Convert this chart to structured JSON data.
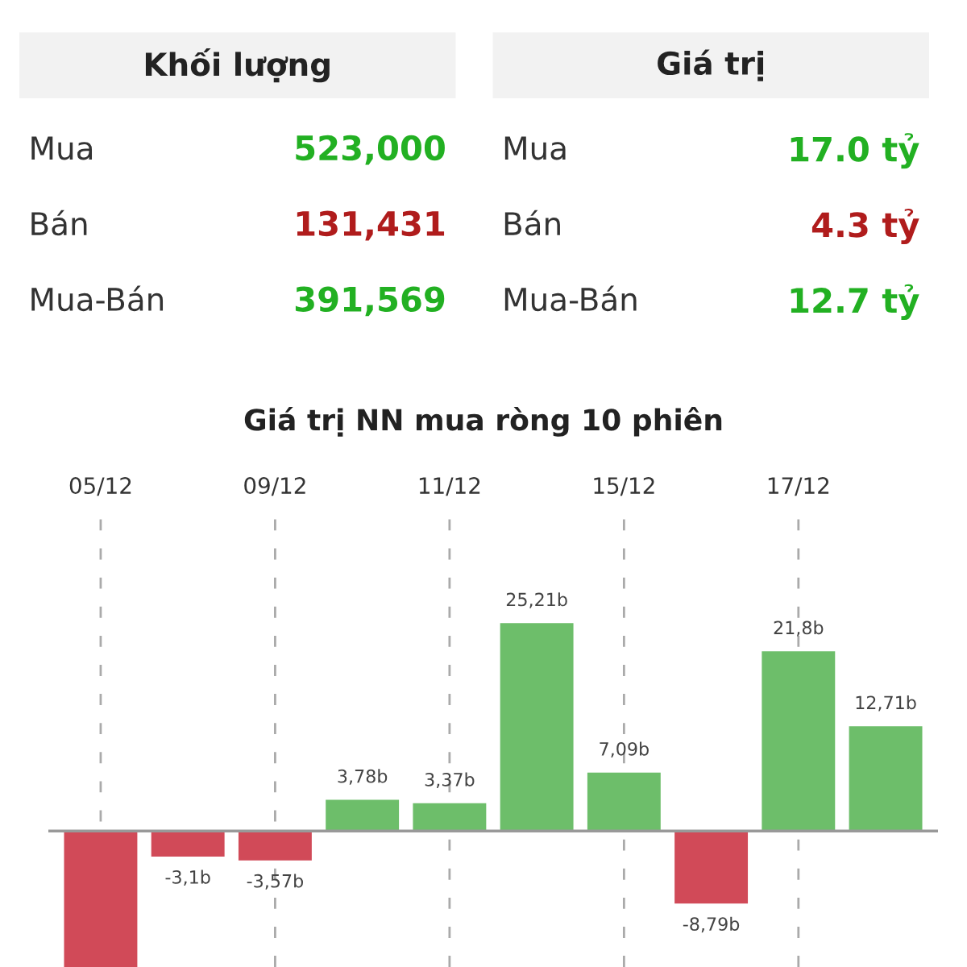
{
  "chart_data": [
    {
      "type": "other",
      "annotations": [
        "Khối lượng",
        "Giá trị",
        "Mua",
        "523,000",
        "Mua",
        "17.0 tỷ",
        "Bán",
        "131,431",
        "Bán",
        "4.3 tỷ",
        "Mua-Bán",
        "391,569",
        "Mua-Bán",
        "12.7 tỷ"
      ],
      "colors": [
        "#222222",
        "#222222",
        "#333333",
        "#22b022",
        "#333333",
        "#22b022",
        "#333333",
        "#b01c1c",
        "#333333",
        "#b01c1c",
        "#333333",
        "#22b022",
        "#333333",
        "#22b022"
      ]
    },
    {
      "type": "bar",
      "title": "Giá trị NN mua ròng 10 phiên",
      "categories": [
        "05/12",
        null,
        "09/12",
        null,
        "11/12",
        null,
        "15/12",
        null,
        "17/12",
        null
      ],
      "values": [
        -16.5,
        -3.1,
        -3.57,
        3.78,
        3.37,
        25.21,
        7.09,
        -8.79,
        21.8,
        12.71
      ],
      "colors": [
        "#d14a58",
        "#d14a58",
        "#d14a58",
        "#6dbe6a",
        "#6dbe6a",
        "#6dbe6a",
        "#6dbe6a",
        "#d14a58",
        "#6dbe6a",
        "#6dbe6a"
      ],
      "value_labels": [
        null,
        "-3,1b",
        "-3,57b",
        "3,78b",
        "3,37b",
        "25,21b",
        "7,09b",
        "-8,79b",
        "21,8b",
        "12,71b"
      ],
      "grid": "x"
    }
  ]
}
